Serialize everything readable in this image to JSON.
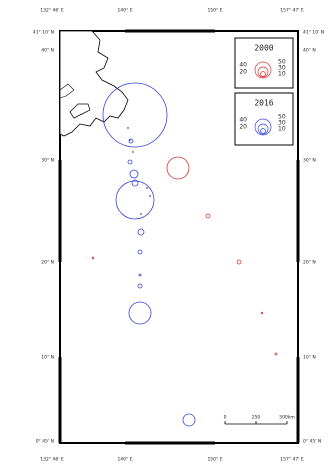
{
  "top_labels": [
    "132° 46' E",
    "140° E",
    "150° E",
    "157° 47' E"
  ],
  "bottom_labels": [
    "132° 46' E",
    "140° E",
    "150° E",
    "157° 47' E"
  ],
  "left_labels": [
    "41° 10' N",
    "40° N",
    "30° N",
    "20° N",
    "10° N",
    "0° 45' N"
  ],
  "right_labels": [
    "41° 10' N",
    "40° N",
    "30° N",
    "20° N",
    "10° N",
    "0° 45' N"
  ],
  "legend": [
    {
      "year": "2000",
      "labels": [
        "40",
        "20",
        "50",
        "30",
        "10"
      ]
    },
    {
      "year": "2016",
      "labels": [
        "40",
        "20",
        "50",
        "30",
        "10"
      ]
    }
  ],
  "scale": [
    "0",
    "250",
    "500km"
  ]
}
